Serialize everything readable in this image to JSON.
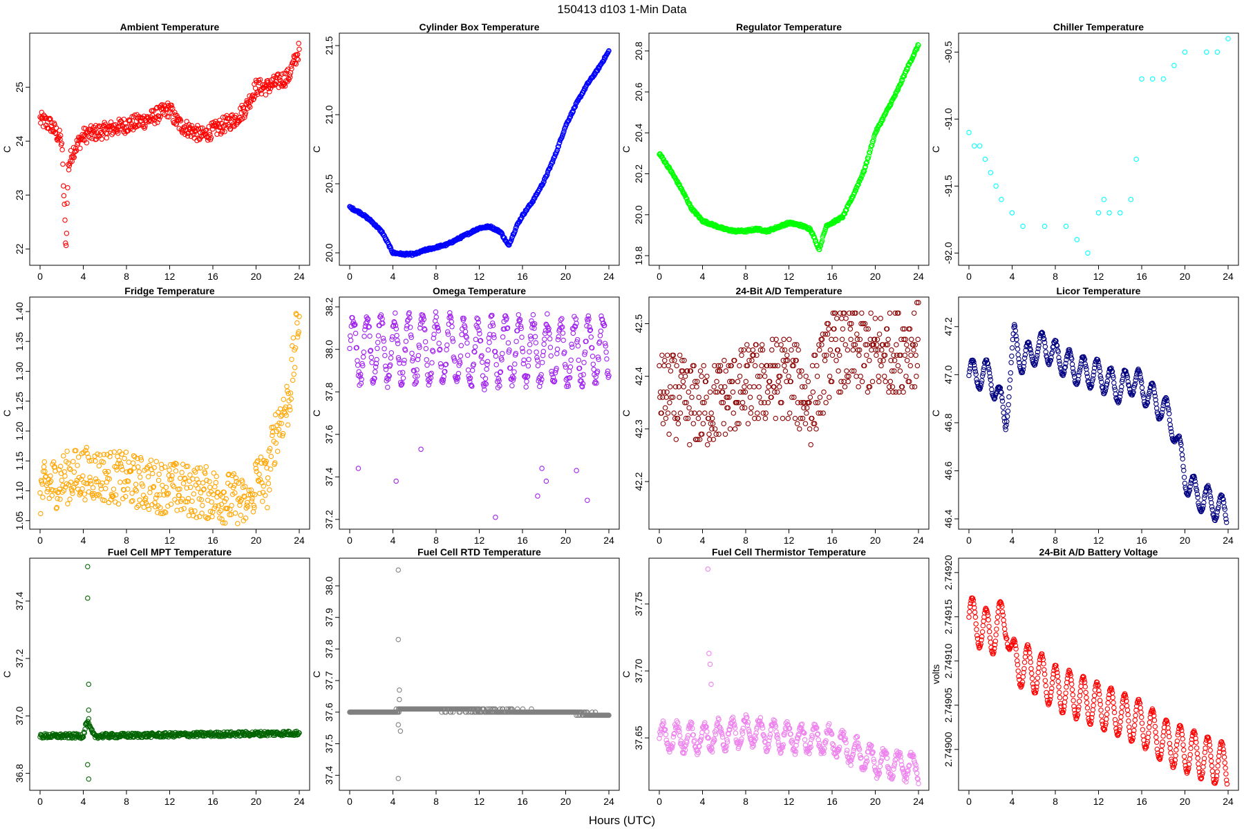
{
  "figure": {
    "super_title": "150413   d103   1-Min Data",
    "x_axis_label": "Hours (UTC)"
  },
  "chart_data": [
    {
      "type": "scatter",
      "title": "Ambient Temperature",
      "ylabel": "C",
      "color": "#ff0000",
      "xlim": [
        0,
        24
      ],
      "ylim": [
        21.8,
        25.9
      ],
      "xticks": [
        0,
        4,
        8,
        12,
        16,
        20,
        24
      ],
      "yticks": [
        22,
        23,
        24,
        25
      ],
      "ytick_labels": [
        "22",
        "23",
        "24",
        "25"
      ],
      "series": [
        {
          "name": "ambient",
          "x": [
            0,
            1,
            2,
            2.4,
            2.6,
            3,
            4,
            6,
            8,
            10,
            12,
            12.5,
            13,
            14,
            15,
            16,
            17,
            18,
            19,
            20,
            21,
            22,
            23,
            24
          ],
          "y": [
            24.4,
            24.3,
            24.0,
            22.0,
            23.5,
            23.8,
            24.1,
            24.2,
            24.3,
            24.4,
            24.6,
            24.4,
            24.3,
            24.2,
            24.1,
            24.2,
            24.3,
            24.4,
            24.6,
            25.0,
            25.0,
            25.1,
            25.2,
            25.7
          ],
          "noise": 0.15
        }
      ]
    },
    {
      "type": "scatter",
      "title": "Cylinder Box Temperature",
      "ylabel": "C",
      "color": "#0000ff",
      "xlim": [
        0,
        24
      ],
      "ylim": [
        19.95,
        21.55
      ],
      "xticks": [
        0,
        4,
        8,
        12,
        16,
        20,
        24
      ],
      "yticks": [
        20.0,
        20.5,
        21.0,
        21.5
      ],
      "ytick_labels": [
        "20.0",
        "20.5",
        "21.0",
        "21.5"
      ],
      "series": [
        {
          "name": "cylinder",
          "x": [
            0,
            1,
            2,
            3,
            4,
            5,
            6,
            7,
            8,
            9,
            10,
            11,
            12,
            13,
            14,
            14.7,
            15.5,
            16,
            17,
            18,
            19,
            20,
            21,
            22,
            23,
            24
          ],
          "y": [
            20.33,
            20.29,
            20.23,
            20.15,
            20.0,
            19.99,
            19.99,
            20.02,
            20.04,
            20.06,
            20.1,
            20.14,
            20.18,
            20.19,
            20.15,
            20.05,
            20.2,
            20.27,
            20.38,
            20.52,
            20.7,
            20.92,
            21.08,
            21.22,
            21.33,
            21.46
          ],
          "noise": 0.008
        }
      ]
    },
    {
      "type": "scatter",
      "title": "Regulator Temperature",
      "ylabel": "C",
      "color": "#00ff00",
      "xlim": [
        0,
        24
      ],
      "ylim": [
        19.78,
        20.86
      ],
      "xticks": [
        0,
        4,
        8,
        12,
        16,
        20,
        24
      ],
      "yticks": [
        19.8,
        20.0,
        20.2,
        20.4,
        20.6,
        20.8
      ],
      "ytick_labels": [
        "19.8",
        "20.0",
        "20.2",
        "20.4",
        "20.6",
        "20.8"
      ],
      "series": [
        {
          "name": "regulator",
          "x": [
            0,
            1,
            2,
            3,
            4,
            5,
            6,
            7,
            8,
            9,
            10,
            11,
            12,
            13,
            14,
            14.8,
            15.5,
            16,
            17,
            18,
            19,
            20,
            21,
            22,
            23,
            24
          ],
          "y": [
            20.3,
            20.22,
            20.13,
            20.03,
            19.97,
            19.95,
            19.93,
            19.92,
            19.92,
            19.93,
            19.92,
            19.94,
            19.96,
            19.95,
            19.93,
            19.83,
            19.95,
            19.96,
            19.99,
            20.1,
            20.22,
            20.4,
            20.5,
            20.6,
            20.72,
            20.83
          ],
          "noise": 0.006
        }
      ]
    },
    {
      "type": "scatter",
      "title": "Chiller Temperature",
      "ylabel": "C",
      "color": "#00ffff",
      "xlim": [
        0,
        24
      ],
      "ylim": [
        -92.05,
        -90.4
      ],
      "xticks": [
        0,
        4,
        8,
        12,
        16,
        20,
        24
      ],
      "yticks": [
        -92.0,
        -91.5,
        -91.0,
        -90.5
      ],
      "ytick_labels": [
        "-92.0",
        "-91.5",
        "-91.0",
        "-90.5"
      ],
      "series": [
        {
          "name": "chiller",
          "x": [
            0,
            0.5,
            1,
            1.5,
            2,
            2.5,
            3,
            4,
            5,
            7,
            9,
            10,
            11,
            12,
            12.5,
            13,
            14,
            15,
            15.5,
            16,
            17,
            18,
            19,
            20,
            22,
            23,
            24
          ],
          "y": [
            -91.1,
            -91.2,
            -91.2,
            -91.3,
            -91.4,
            -91.5,
            -91.6,
            -91.7,
            -91.8,
            -91.8,
            -91.8,
            -91.9,
            -92.0,
            -91.7,
            -91.6,
            -91.7,
            -91.7,
            -91.6,
            -91.3,
            -90.7,
            -90.7,
            -90.7,
            -90.6,
            -90.5,
            -90.5,
            -90.5,
            -90.4
          ],
          "noise": 0.0,
          "step": 0.1
        }
      ]
    },
    {
      "type": "scatter",
      "title": "Fridge Temperature",
      "ylabel": "C",
      "color": "#ffa500",
      "xlim": [
        0,
        24
      ],
      "ylim": [
        1.045,
        1.415
      ],
      "xticks": [
        0,
        4,
        8,
        12,
        16,
        20,
        24
      ],
      "yticks": [
        1.05,
        1.1,
        1.15,
        1.2,
        1.25,
        1.3,
        1.35,
        1.4
      ],
      "ytick_labels": [
        "1.05",
        "1.10",
        "1.15",
        "1.20",
        "1.25",
        "1.30",
        "1.35",
        "1.40"
      ],
      "series": [
        {
          "name": "fridge",
          "x": [
            0,
            2,
            4,
            6,
            8,
            10,
            12,
            14,
            16,
            18,
            19.5,
            20,
            20.5,
            21,
            21.5,
            22,
            22.5,
            23,
            23.5,
            24
          ],
          "y": [
            1.1,
            1.12,
            1.13,
            1.125,
            1.12,
            1.11,
            1.105,
            1.1,
            1.095,
            1.085,
            1.07,
            1.12,
            1.12,
            1.11,
            1.17,
            1.21,
            1.23,
            1.25,
            1.32,
            1.4
          ],
          "noise": 0.045
        }
      ]
    },
    {
      "type": "scatter",
      "title": "Omega Temperature",
      "ylabel": "C",
      "color": "#a020f0",
      "xlim": [
        0,
        24
      ],
      "ylim": [
        37.18,
        38.22
      ],
      "xticks": [
        0,
        4,
        8,
        12,
        16,
        20,
        24
      ],
      "yticks": [
        37.2,
        37.4,
        37.6,
        37.8,
        38.0,
        38.2
      ],
      "ytick_labels": [
        "37.2",
        "37.4",
        "37.6",
        "37.8",
        "38.0",
        "38.2"
      ],
      "series": [
        {
          "name": "omega",
          "x": [
            0,
            4,
            8,
            12,
            16,
            20,
            24
          ],
          "y": [
            38.0,
            38.0,
            38.0,
            37.98,
            38.0,
            37.98,
            38.0
          ],
          "noise": 0.03,
          "wave": 0.15
        },
        {
          "name": "omega-outliers",
          "x": [
            0.8,
            4.3,
            6.6,
            13.5,
            17.4,
            17.8,
            18.2,
            21.0,
            22.0
          ],
          "y": [
            37.44,
            37.38,
            37.53,
            37.21,
            37.31,
            37.44,
            37.38,
            37.43,
            37.29
          ],
          "noise": 0
        }
      ]
    },
    {
      "type": "scatter",
      "title": "24-Bit A/D Temperature",
      "ylabel": "C",
      "color": "#8b0000",
      "xlim": [
        0,
        24
      ],
      "ylim": [
        42.12,
        42.54
      ],
      "xticks": [
        0,
        4,
        8,
        12,
        16,
        20,
        24
      ],
      "yticks": [
        42.2,
        42.3,
        42.4,
        42.5
      ],
      "ytick_labels": [
        "42.2",
        "42.3",
        "42.4",
        "42.5"
      ],
      "series": [
        {
          "name": "ad-temp",
          "x": [
            0,
            4,
            8,
            12,
            14,
            16,
            20,
            24
          ],
          "y": [
            42.37,
            42.34,
            42.38,
            42.4,
            42.35,
            42.45,
            42.44,
            42.46
          ],
          "noise": 0.08,
          "step": 0.01
        }
      ]
    },
    {
      "type": "scatter",
      "title": "Licor Temperature",
      "ylabel": "C",
      "color": "#000080",
      "xlim": [
        0,
        24
      ],
      "ylim": [
        46.38,
        47.3
      ],
      "xticks": [
        0,
        4,
        8,
        12,
        16,
        20,
        24
      ],
      "yticks": [
        46.4,
        46.6,
        46.8,
        47.0,
        47.2
      ],
      "ytick_labels": [
        "46.4",
        "46.6",
        "46.8",
        "47.0",
        "47.2"
      ],
      "series": [
        {
          "name": "licor",
          "x": [
            0,
            2,
            3.4,
            4.2,
            5,
            6,
            7,
            8,
            10,
            12,
            14,
            15,
            16,
            17,
            18,
            19,
            20,
            21,
            22,
            23,
            24
          ],
          "y": [
            47.0,
            47.0,
            46.82,
            47.15,
            47.05,
            47.1,
            47.12,
            47.08,
            47.02,
            47.0,
            46.94,
            46.98,
            46.95,
            46.9,
            46.86,
            46.78,
            46.58,
            46.5,
            46.48,
            46.45,
            46.42
          ],
          "noise": 0.005,
          "wave": 0.06
        }
      ]
    },
    {
      "type": "scatter",
      "title": "Fuel Cell MPT Temperature",
      "ylabel": "C",
      "color": "#006400",
      "xlim": [
        0,
        24
      ],
      "ylim": [
        36.76,
        37.53
      ],
      "xticks": [
        0,
        4,
        8,
        12,
        16,
        20,
        24
      ],
      "yticks": [
        36.8,
        37.0,
        37.2,
        37.4
      ],
      "ytick_labels": [
        "36.8",
        "37.0",
        "37.2",
        "37.4"
      ],
      "series": [
        {
          "name": "mpt",
          "x": [
            0,
            4,
            4.3,
            4.6,
            5,
            24
          ],
          "y": [
            36.93,
            36.93,
            36.98,
            36.96,
            36.93,
            36.94
          ],
          "noise": 0.008
        },
        {
          "name": "mpt-outliers",
          "x": [
            4.4,
            4.4,
            4.5,
            4.5,
            4.5,
            4.4,
            4.5
          ],
          "y": [
            37.52,
            37.41,
            37.11,
            37.02,
            36.99,
            36.83,
            36.78
          ],
          "noise": 0
        }
      ]
    },
    {
      "type": "scatter",
      "title": "Fuel Cell RTD Temperature",
      "ylabel": "C",
      "color": "#808080",
      "xlim": [
        0,
        24
      ],
      "ylim": [
        37.37,
        38.07
      ],
      "xticks": [
        0,
        4,
        8,
        12,
        16,
        20,
        24
      ],
      "yticks": [
        37.4,
        37.5,
        37.6,
        37.7,
        37.8,
        37.9,
        38.0
      ],
      "ytick_labels": [
        "37.4",
        "37.5",
        "37.6",
        "37.7",
        "37.8",
        "37.9",
        "38.0"
      ],
      "series": [
        {
          "name": "rtd",
          "x": [
            0,
            4,
            5,
            20,
            24
          ],
          "y": [
            37.6,
            37.6,
            37.61,
            37.6,
            37.59
          ],
          "noise": 0.003,
          "step": 0.01
        },
        {
          "name": "rtd-outliers",
          "x": [
            4.5,
            4.5,
            4.6,
            4.6,
            4.5,
            4.7,
            4.5
          ],
          "y": [
            38.05,
            37.83,
            37.67,
            37.64,
            37.56,
            37.54,
            37.39
          ],
          "noise": 0
        }
      ]
    },
    {
      "type": "scatter",
      "title": "Fuel Cell Thermistor Temperature",
      "ylabel": "C",
      "color": "#ee82ee",
      "xlim": [
        0,
        24
      ],
      "ylim": [
        37.615,
        37.78
      ],
      "xticks": [
        0,
        4,
        8,
        12,
        16,
        20,
        24
      ],
      "yticks": [
        37.65,
        37.7,
        37.75
      ],
      "ytick_labels": [
        "37.65",
        "37.70",
        "37.75"
      ],
      "series": [
        {
          "name": "thermistor",
          "x": [
            0,
            4,
            8,
            12,
            16,
            20,
            24
          ],
          "y": [
            37.65,
            37.65,
            37.655,
            37.65,
            37.648,
            37.632,
            37.628
          ],
          "noise": 0.003,
          "wave": 0.01
        },
        {
          "name": "thermistor-outliers",
          "x": [
            4.5,
            4.6,
            4.7,
            4.8
          ],
          "y": [
            37.776,
            37.713,
            37.705,
            37.69
          ],
          "noise": 0
        }
      ]
    },
    {
      "type": "scatter",
      "title": "24-Bit A/D Battery Voltage",
      "ylabel": "volts",
      "color": "#ff0000",
      "xlim": [
        0,
        24
      ],
      "ylim": [
        2.74896,
        2.74921
      ],
      "xticks": [
        0,
        4,
        8,
        12,
        16,
        20,
        24
      ],
      "yticks": [
        2.749,
        2.74905,
        2.7491,
        2.74915,
        2.7492
      ],
      "ytick_labels": [
        "2.74900",
        "2.74905",
        "2.74910",
        "2.74915",
        "2.74920"
      ],
      "series": [
        {
          "name": "battery",
          "x": [
            0,
            2,
            3.5,
            4,
            6,
            8,
            10,
            12,
            14,
            16,
            18,
            20,
            22,
            24
          ],
          "y": [
            2.74915,
            2.74913,
            2.74915,
            2.7491,
            2.74909,
            2.74907,
            2.74906,
            2.74905,
            2.74904,
            2.74903,
            2.74901,
            2.749,
            2.74899,
            2.74898
          ],
          "noise": 1e-06,
          "wave": 2.5e-05
        }
      ]
    }
  ]
}
